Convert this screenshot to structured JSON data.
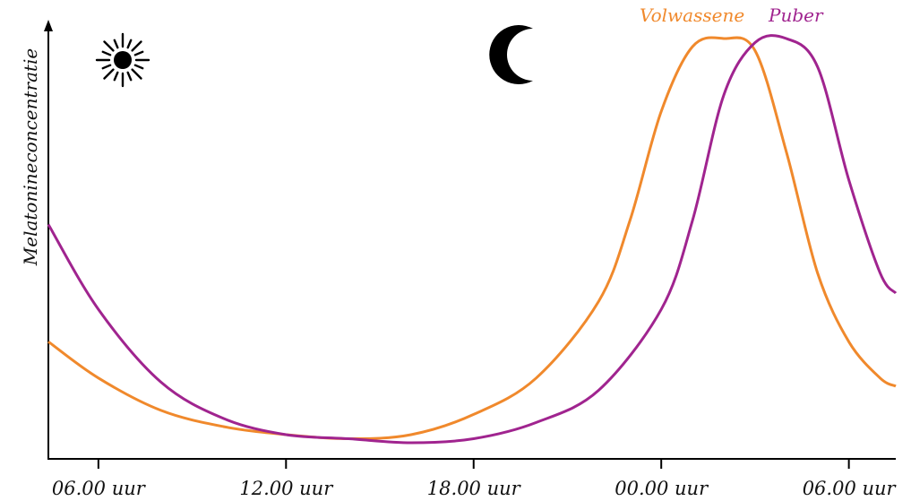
{
  "chart_data": {
    "type": "line",
    "title": "",
    "xlabel": "",
    "ylabel": "Melatonineconcentratie",
    "x_tick_labels": [
      "06.00 uur",
      "12.00 uur",
      "18.00 uur",
      "00.00 uur",
      "06.00 uur"
    ],
    "x_unit": "hours since 06.00 uur",
    "x_ticks": [
      0,
      6,
      12,
      18,
      24
    ],
    "xlim": [
      -1.6,
      25.5
    ],
    "ylim": [
      0,
      1
    ],
    "grid": false,
    "legend_position": "top-right",
    "icons": [
      "sun-icon",
      "moon-icon"
    ],
    "series": [
      {
        "name": "Volwassene",
        "color": "#F0892C",
        "x": [
          -1.6,
          0,
          2,
          4,
          6,
          8,
          10,
          12,
          14,
          16,
          17,
          18,
          19,
          20,
          21,
          22,
          23,
          24,
          25,
          25.5
        ],
        "y": [
          0.25,
          0.16,
          0.08,
          0.04,
          0.02,
          0.01,
          0.02,
          0.07,
          0.16,
          0.35,
          0.55,
          0.82,
          0.98,
          1.0,
          0.97,
          0.72,
          0.42,
          0.25,
          0.16,
          0.14
        ]
      },
      {
        "name": "Puber",
        "color": "#A0248F",
        "x": [
          -1.6,
          0,
          2,
          4,
          6,
          8,
          10,
          12,
          14,
          16,
          18,
          19,
          20,
          21,
          22,
          23,
          24,
          25,
          25.5
        ],
        "y": [
          0.54,
          0.33,
          0.15,
          0.06,
          0.02,
          0.01,
          0.0,
          0.01,
          0.05,
          0.13,
          0.33,
          0.55,
          0.86,
          0.99,
          1.0,
          0.93,
          0.65,
          0.42,
          0.37
        ]
      }
    ]
  }
}
